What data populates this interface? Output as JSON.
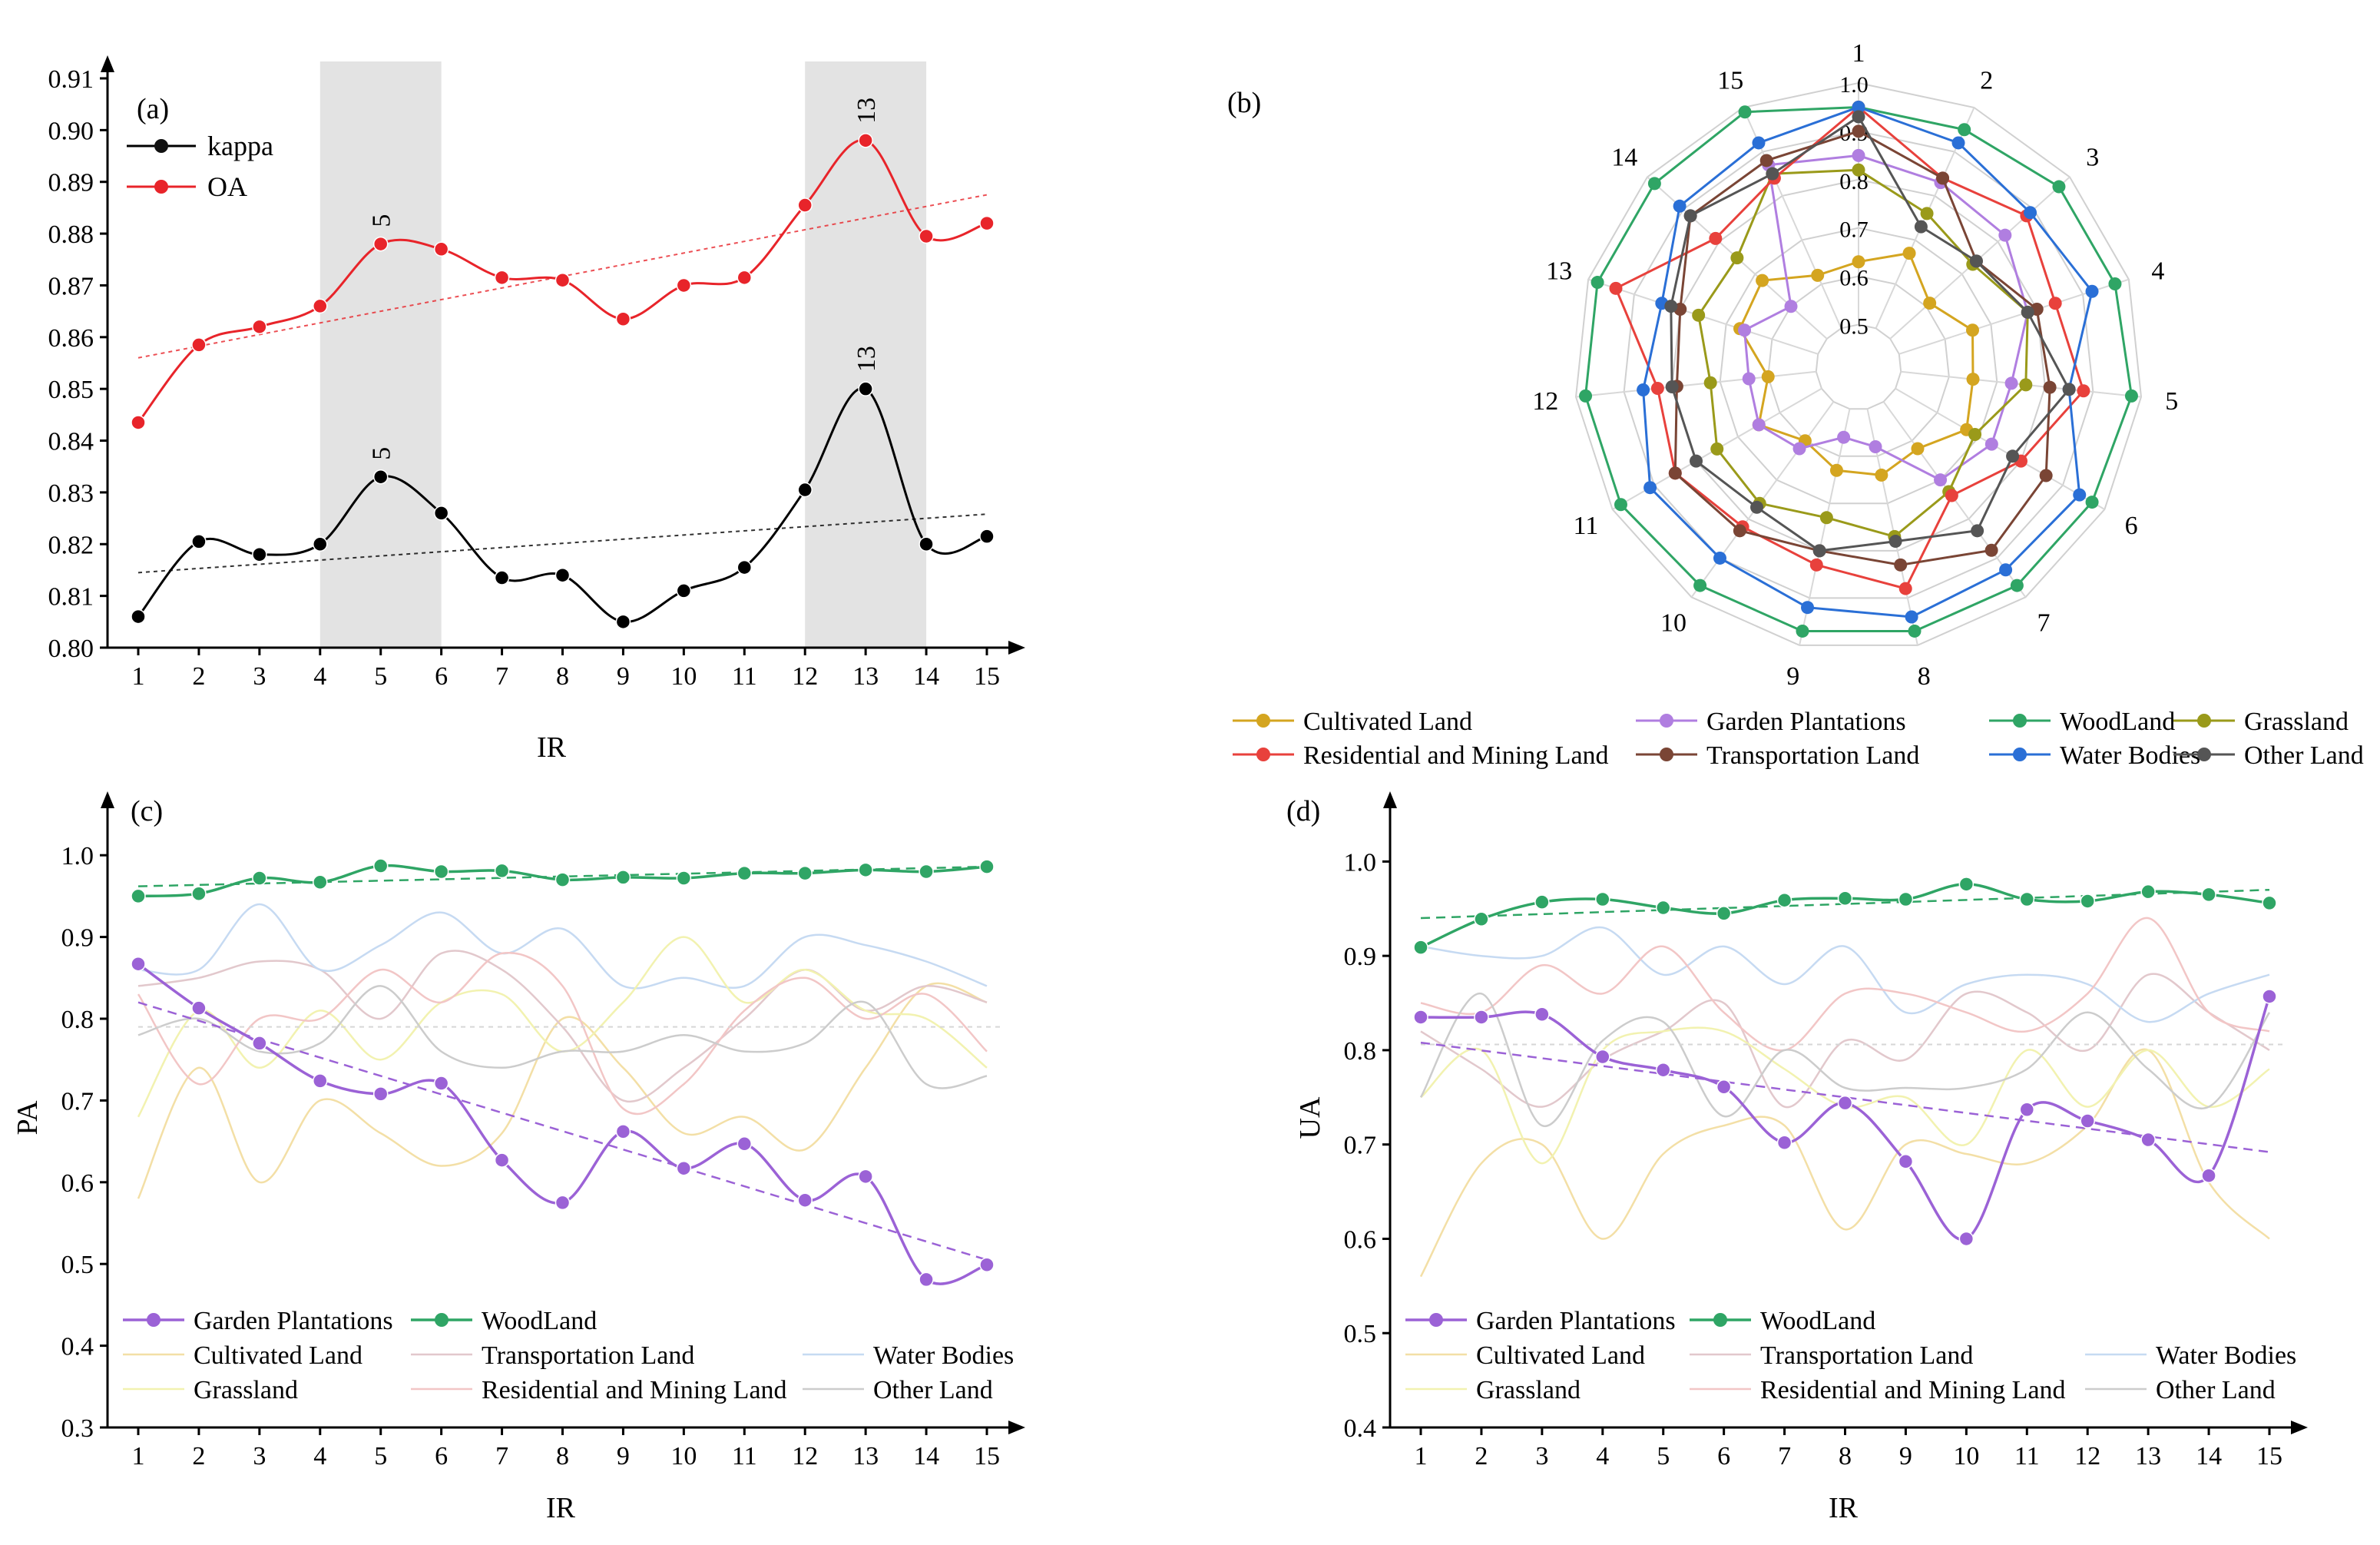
{
  "chart_data": [
    {
      "id": "a",
      "type": "line",
      "panel_label": "(a)",
      "xlabel": "IR",
      "ylabel": "",
      "x": [
        1,
        2,
        3,
        4,
        5,
        6,
        7,
        8,
        9,
        10,
        11,
        12,
        13,
        14,
        15
      ],
      "ylim": [
        0.8,
        0.91
      ],
      "yticks": [
        "0.80",
        "0.81",
        "0.82",
        "0.83",
        "0.84",
        "0.85",
        "0.86",
        "0.87",
        "0.88",
        "0.89",
        "0.90",
        "0.91"
      ],
      "shaded_ranges": [
        [
          4,
          6
        ],
        [
          12,
          14
        ]
      ],
      "series": [
        {
          "name": "kappa",
          "color": "#000000",
          "values": [
            0.806,
            0.8205,
            0.818,
            0.82,
            0.833,
            0.826,
            0.8135,
            0.814,
            0.805,
            0.811,
            0.8155,
            0.8305,
            0.85,
            0.82,
            0.8215
          ],
          "trend": [
            0.8145,
            0.8258
          ]
        },
        {
          "name": "OA",
          "color": "#e8242a",
          "values": [
            0.8435,
            0.8585,
            0.862,
            0.866,
            0.878,
            0.877,
            0.8715,
            0.871,
            0.8635,
            0.87,
            0.8715,
            0.8855,
            0.898,
            0.8795,
            0.882
          ],
          "trend": [
            0.856,
            0.8875
          ]
        }
      ],
      "annotations": [
        {
          "series": "OA",
          "x": 5,
          "text": "5"
        },
        {
          "series": "OA",
          "x": 13,
          "text": "13"
        },
        {
          "series": "kappa",
          "x": 5,
          "text": "5"
        },
        {
          "series": "kappa",
          "x": 13,
          "text": "13"
        }
      ]
    },
    {
      "id": "b",
      "type": "radar",
      "panel_label": "(b)",
      "axes": [
        "1",
        "2",
        "3",
        "4",
        "5",
        "6",
        "7",
        "8",
        "9",
        "10",
        "11",
        "12",
        "13",
        "14",
        "15"
      ],
      "rlim": [
        0.5,
        1.0
      ],
      "ring_labels": [
        "0.5",
        "0.6",
        "0.7",
        "0.8",
        "0.9",
        "1.0"
      ],
      "series": [
        {
          "name": "Cultivated Land",
          "color": "#d4a520",
          "values": [
            0.63,
            0.67,
            0.61,
            0.66,
            0.65,
            0.67,
            0.62,
            0.64,
            0.63,
            0.6,
            0.65,
            0.6,
            0.67,
            0.68,
            0.62
          ]
        },
        {
          "name": "Garden Plantations",
          "color": "#b07ee0",
          "values": [
            0.85,
            0.83,
            0.82,
            0.78,
            0.73,
            0.73,
            0.7,
            0.58,
            0.56,
            0.62,
            0.65,
            0.64,
            0.66,
            0.6,
            0.87
          ]
        },
        {
          "name": "WoodLand",
          "color": "#2fa565",
          "values": [
            0.95,
            0.95,
            0.97,
            0.97,
            0.98,
            0.97,
            0.97,
            0.97,
            0.97,
            0.97,
            0.98,
            0.98,
            0.98,
            0.98,
            0.99
          ]
        },
        {
          "name": "Grassland",
          "color": "#9a9a1a",
          "values": [
            0.82,
            0.76,
            0.73,
            0.78,
            0.76,
            0.69,
            0.73,
            0.77,
            0.73,
            0.76,
            0.75,
            0.72,
            0.76,
            0.75,
            0.85
          ]
        },
        {
          "name": "Residential and Mining Land",
          "color": "#e8413c",
          "values": [
            0.95,
            0.84,
            0.88,
            0.84,
            0.88,
            0.8,
            0.74,
            0.88,
            0.83,
            0.82,
            0.85,
            0.83,
            0.94,
            0.81,
            0.84
          ]
        },
        {
          "name": "Transportation Land",
          "color": "#7a4535",
          "values": [
            0.9,
            0.84,
            0.74,
            0.8,
            0.81,
            0.86,
            0.88,
            0.83,
            0.8,
            0.83,
            0.85,
            0.79,
            0.8,
            0.88,
            0.88
          ]
        },
        {
          "name": "Water Bodies",
          "color": "#2a6fd6",
          "values": [
            0.95,
            0.92,
            0.89,
            0.92,
            0.85,
            0.94,
            0.93,
            0.94,
            0.92,
            0.9,
            0.91,
            0.86,
            0.84,
            0.91,
            0.92
          ]
        },
        {
          "name": "Other Land",
          "color": "#555555",
          "values": [
            0.93,
            0.73,
            0.74,
            0.78,
            0.85,
            0.78,
            0.83,
            0.78,
            0.8,
            0.77,
            0.8,
            0.8,
            0.82,
            0.88,
            0.85
          ]
        }
      ]
    },
    {
      "id": "c",
      "type": "line",
      "panel_label": "(c)",
      "xlabel": "IR",
      "ylabel": "PA",
      "x": [
        1,
        2,
        3,
        4,
        5,
        6,
        7,
        8,
        9,
        10,
        11,
        12,
        13,
        14,
        15
      ],
      "ylim": [
        0.3,
        1.05
      ],
      "yticks": [
        "0.3",
        "0.4",
        "0.5",
        "0.6",
        "0.7",
        "0.8",
        "0.9",
        "1.0"
      ],
      "series": [
        {
          "name": "Garden Plantations",
          "color": "#9b62d6",
          "highlight": true,
          "values": [
            0.867,
            0.813,
            0.77,
            0.724,
            0.708,
            0.721,
            0.627,
            0.575,
            0.662,
            0.617,
            0.647,
            0.578,
            0.607,
            0.481,
            0.499
          ],
          "trend": [
            0.82,
            0.505
          ]
        },
        {
          "name": "WoodLand",
          "color": "#2fa565",
          "highlight": true,
          "values": [
            0.95,
            0.953,
            0.972,
            0.967,
            0.987,
            0.98,
            0.981,
            0.97,
            0.973,
            0.972,
            0.978,
            0.978,
            0.982,
            0.98,
            0.986
          ],
          "trend": [
            0.962,
            0.986
          ]
        },
        {
          "name": "Cultivated Land",
          "color": "#f3dfa6",
          "values": [
            0.58,
            0.74,
            0.6,
            0.7,
            0.66,
            0.62,
            0.66,
            0.8,
            0.74,
            0.66,
            0.68,
            0.64,
            0.74,
            0.84,
            0.82
          ]
        },
        {
          "name": "Transportation Land",
          "color": "#e2c8cc",
          "values": [
            0.84,
            0.85,
            0.87,
            0.86,
            0.8,
            0.88,
            0.86,
            0.79,
            0.7,
            0.74,
            0.8,
            0.86,
            0.81,
            0.84,
            0.82
          ]
        },
        {
          "name": "Water Bodies",
          "color": "#c6daf2",
          "values": [
            0.86,
            0.86,
            0.94,
            0.86,
            0.89,
            0.93,
            0.88,
            0.91,
            0.84,
            0.85,
            0.84,
            0.9,
            0.89,
            0.87,
            0.84
          ]
        },
        {
          "name": "Grassland",
          "color": "#f2f2b0",
          "values": [
            0.68,
            0.81,
            0.74,
            0.81,
            0.75,
            0.82,
            0.83,
            0.76,
            0.82,
            0.9,
            0.82,
            0.86,
            0.81,
            0.8,
            0.74
          ]
        },
        {
          "name": "Residential and Mining Land",
          "color": "#f2c6c6",
          "values": [
            0.83,
            0.72,
            0.8,
            0.8,
            0.86,
            0.82,
            0.88,
            0.84,
            0.69,
            0.72,
            0.81,
            0.85,
            0.8,
            0.83,
            0.76
          ]
        },
        {
          "name": "Other Land",
          "color": "#cccccc",
          "values": [
            0.78,
            0.8,
            0.76,
            0.77,
            0.84,
            0.76,
            0.74,
            0.76,
            0.76,
            0.78,
            0.76,
            0.77,
            0.82,
            0.72,
            0.73
          ]
        }
      ],
      "grey_trend": [
        0.79,
        0.79
      ]
    },
    {
      "id": "d",
      "type": "line",
      "panel_label": "(d)",
      "xlabel": "IR",
      "ylabel": "UA",
      "x": [
        1,
        2,
        3,
        4,
        5,
        6,
        7,
        8,
        9,
        10,
        11,
        12,
        13,
        14,
        15
      ],
      "ylim": [
        0.4,
        1.05
      ],
      "yticks": [
        "0.4",
        "0.5",
        "0.6",
        "0.7",
        "0.8",
        "0.9",
        "1.0"
      ],
      "series": [
        {
          "name": "Garden Plantations",
          "color": "#9b62d6",
          "highlight": true,
          "values": [
            0.835,
            0.835,
            0.838,
            0.793,
            0.779,
            0.761,
            0.702,
            0.744,
            0.682,
            0.6,
            0.737,
            0.725,
            0.705,
            0.667,
            0.857
          ],
          "trend": [
            0.808,
            0.692
          ]
        },
        {
          "name": "WoodLand",
          "color": "#2fa565",
          "highlight": true,
          "values": [
            0.909,
            0.939,
            0.957,
            0.96,
            0.951,
            0.945,
            0.959,
            0.961,
            0.96,
            0.976,
            0.96,
            0.958,
            0.968,
            0.965,
            0.956
          ],
          "trend": [
            0.94,
            0.97
          ]
        },
        {
          "name": "Cultivated Land",
          "color": "#f3dfa6",
          "values": [
            0.56,
            0.68,
            0.7,
            0.6,
            0.69,
            0.72,
            0.72,
            0.61,
            0.7,
            0.69,
            0.68,
            0.72,
            0.8,
            0.66,
            0.6
          ]
        },
        {
          "name": "Transportation Land",
          "color": "#e2c8cc",
          "values": [
            0.82,
            0.78,
            0.74,
            0.79,
            0.82,
            0.85,
            0.74,
            0.81,
            0.79,
            0.86,
            0.84,
            0.8,
            0.88,
            0.84,
            0.8
          ]
        },
        {
          "name": "Water Bodies",
          "color": "#c6daf2",
          "values": [
            0.91,
            0.9,
            0.9,
            0.93,
            0.88,
            0.91,
            0.87,
            0.91,
            0.84,
            0.87,
            0.88,
            0.87,
            0.83,
            0.86,
            0.88
          ]
        },
        {
          "name": "Grassland",
          "color": "#f2f2b0",
          "values": [
            0.75,
            0.8,
            0.68,
            0.8,
            0.82,
            0.82,
            0.78,
            0.74,
            0.75,
            0.7,
            0.8,
            0.74,
            0.8,
            0.74,
            0.78
          ]
        },
        {
          "name": "Residential and Mining Land",
          "color": "#f2c6c6",
          "values": [
            0.85,
            0.84,
            0.89,
            0.86,
            0.91,
            0.84,
            0.8,
            0.86,
            0.86,
            0.84,
            0.82,
            0.86,
            0.94,
            0.84,
            0.82
          ]
        },
        {
          "name": "Other Land",
          "color": "#cccccc",
          "values": [
            0.75,
            0.86,
            0.72,
            0.81,
            0.83,
            0.73,
            0.8,
            0.76,
            0.76,
            0.76,
            0.78,
            0.84,
            0.78,
            0.74,
            0.84
          ]
        }
      ],
      "grey_trend": [
        0.806,
        0.806
      ]
    }
  ]
}
